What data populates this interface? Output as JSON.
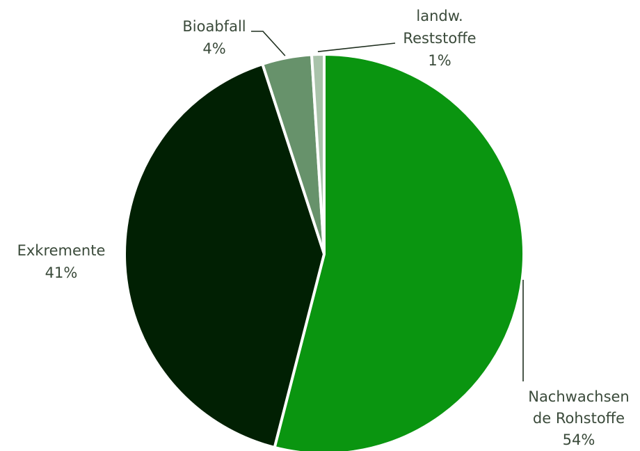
{
  "chart_data": {
    "type": "pie",
    "slices": [
      {
        "label_lines": [
          "Nachwachsen",
          "de Rohstoffe"
        ],
        "value_label": "54%",
        "value": 54,
        "color": "#0a9510"
      },
      {
        "label_lines": [
          "Exkremente"
        ],
        "value_label": "41%",
        "value": 41,
        "color": "#012003"
      },
      {
        "label_lines": [
          "Bioabfall"
        ],
        "value_label": "4%",
        "value": 4,
        "color": "#67926b"
      },
      {
        "label_lines": [
          "landw.",
          "Reststoffe"
        ],
        "value_label": "1%",
        "value": 1,
        "color": "#a9c3aa"
      }
    ]
  }
}
